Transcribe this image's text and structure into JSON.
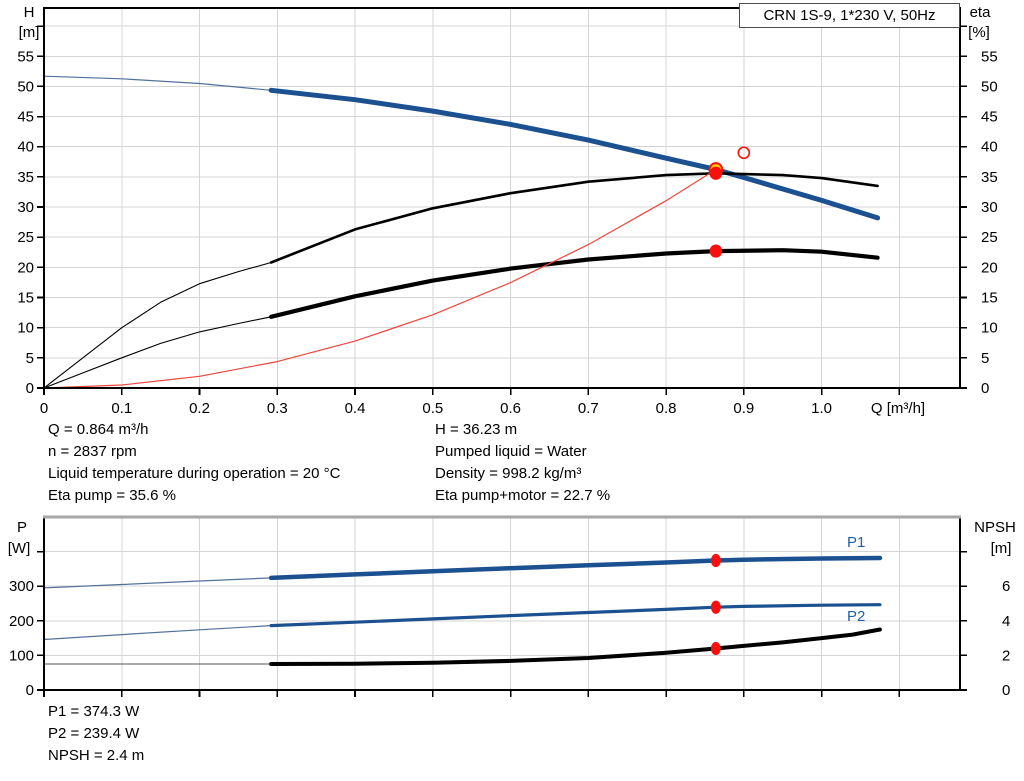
{
  "title_box": {
    "label": "CRN 1S-9, 1*230 V, 50Hz"
  },
  "colors": {
    "blue": "#1b5091",
    "blue_thin": "#51719b",
    "black": "#000000",
    "gray_thin": "#555555",
    "red_line": "#f0453c",
    "red_marker": "#fb0f0c",
    "yellow_marker": "#ffd400",
    "grid": "#d4d4d4",
    "axis": "#000000",
    "frame_gray": "#a6a6a6",
    "label_blue": "#1f5fa9"
  },
  "top_chart": {
    "left_axis": {
      "title": "H",
      "unit": "[m]"
    },
    "right_axis": {
      "title": "eta",
      "unit": "[%]"
    },
    "x_axis_label": "Q [m³/h]",
    "info_left": [
      "Q = 0.864 m³/h",
      "n = 2837 rpm",
      "Liquid temperature during operation = 20 °C",
      "Eta pump = 35.6 %"
    ],
    "info_right": [
      "H = 36.23 m",
      "Pumped liquid = Water",
      "Density = 998.2 kg/m³",
      "Eta pump+motor = 22.7 %"
    ]
  },
  "bottom_chart": {
    "left_axis": {
      "title": "P",
      "unit": "[W]"
    },
    "right_axis": {
      "title": "NPSH",
      "unit": "[m]"
    },
    "p1_label": "P1",
    "p2_label": "P2",
    "info": [
      "P1 = 374.3 W",
      "P2 = 239.4 W",
      "NPSH = 2.4 m"
    ]
  },
  "chart_data": [
    {
      "id": "top",
      "type": "line",
      "title": "CRN 1S-9, 1*230 V, 50Hz",
      "xlabel": "Q [m³/h]",
      "ylabel_left": "H [m]",
      "ylabel_right": "eta [%]",
      "xlim": [
        0,
        1.178
      ],
      "ylim_left": [
        0,
        63
      ],
      "ylim_right": [
        0,
        63
      ],
      "grid": true,
      "xticks": [
        {
          "v": 0,
          "l": "0"
        },
        {
          "v": 0.1,
          "l": "0.1"
        },
        {
          "v": 0.2,
          "l": "0.2"
        },
        {
          "v": 0.3,
          "l": "0.3"
        },
        {
          "v": 0.4,
          "l": "0.4"
        },
        {
          "v": 0.5,
          "l": "0.5"
        },
        {
          "v": 0.6,
          "l": "0.6"
        },
        {
          "v": 0.7,
          "l": "0.7"
        },
        {
          "v": 0.8,
          "l": "0.8"
        },
        {
          "v": 0.9,
          "l": "0.9"
        },
        {
          "v": 1.0,
          "l": "1.0"
        },
        {
          "v": 1.1,
          "l": ""
        }
      ],
      "yticks_left": [
        {
          "v": 0,
          "l": "0"
        },
        {
          "v": 5,
          "l": "5"
        },
        {
          "v": 10,
          "l": "10"
        },
        {
          "v": 15,
          "l": "15"
        },
        {
          "v": 20,
          "l": "20"
        },
        {
          "v": 25,
          "l": "25"
        },
        {
          "v": 30,
          "l": "30"
        },
        {
          "v": 35,
          "l": "35"
        },
        {
          "v": 40,
          "l": "40"
        },
        {
          "v": 45,
          "l": "45"
        },
        {
          "v": 50,
          "l": "50"
        },
        {
          "v": 55,
          "l": "55"
        },
        {
          "v": 60,
          "l": ""
        }
      ],
      "yticks_right": [
        {
          "v": 0,
          "l": "0"
        },
        {
          "v": 5,
          "l": "5"
        },
        {
          "v": 10,
          "l": "10"
        },
        {
          "v": 15,
          "l": "15"
        },
        {
          "v": 20,
          "l": "20"
        },
        {
          "v": 25,
          "l": "25"
        },
        {
          "v": 30,
          "l": "30"
        },
        {
          "v": 35,
          "l": "35"
        },
        {
          "v": 40,
          "l": "40"
        },
        {
          "v": 45,
          "l": "45"
        },
        {
          "v": 50,
          "l": "50"
        },
        {
          "v": 55,
          "l": "55"
        },
        {
          "v": 60,
          "l": ""
        }
      ],
      "series": [
        {
          "name": "pump-curve-extension",
          "axis": "left",
          "color": "blue_thin",
          "width": 1.2,
          "points": [
            [
              0,
              51.7
            ],
            [
              0.1,
              51.27
            ],
            [
              0.2,
              50.48
            ],
            [
              0.292,
              49.35
            ]
          ]
        },
        {
          "name": "pump-curve",
          "axis": "left",
          "color": "blue",
          "width": 5,
          "points": [
            [
              0.292,
              49.35
            ],
            [
              0.4,
              47.8
            ],
            [
              0.5,
              45.9
            ],
            [
              0.6,
              43.7
            ],
            [
              0.7,
              41.1
            ],
            [
              0.8,
              38.1
            ],
            [
              0.864,
              36.23
            ],
            [
              0.9,
              34.9
            ],
            [
              1.0,
              31.1
            ],
            [
              1.072,
              28.2
            ]
          ]
        },
        {
          "name": "eta-pump-extension",
          "axis": "right",
          "color": "black",
          "width": 1.1,
          "points": [
            [
              0,
              0
            ],
            [
              0.05,
              5
            ],
            [
              0.1,
              10
            ],
            [
              0.15,
              14.2
            ],
            [
              0.2,
              17.3
            ],
            [
              0.25,
              19.3
            ],
            [
              0.292,
              20.8
            ]
          ]
        },
        {
          "name": "eta-pump-curve",
          "axis": "right",
          "color": "black",
          "width": 2.6,
          "points": [
            [
              0.292,
              20.8
            ],
            [
              0.4,
              26.3
            ],
            [
              0.5,
              29.8
            ],
            [
              0.6,
              32.3
            ],
            [
              0.7,
              34.2
            ],
            [
              0.8,
              35.3
            ],
            [
              0.864,
              35.6
            ],
            [
              0.95,
              35.3
            ],
            [
              1.0,
              34.8
            ],
            [
              1.072,
              33.5
            ]
          ]
        },
        {
          "name": "eta-pump-motor-extension",
          "axis": "right",
          "color": "black",
          "width": 1.1,
          "points": [
            [
              0,
              0
            ],
            [
              0.05,
              2.5
            ],
            [
              0.1,
              5
            ],
            [
              0.15,
              7.4
            ],
            [
              0.2,
              9.3
            ],
            [
              0.25,
              10.7
            ],
            [
              0.292,
              11.8
            ]
          ]
        },
        {
          "name": "eta-pump-motor-curve",
          "axis": "right",
          "color": "black",
          "width": 4.2,
          "points": [
            [
              0.292,
              11.8
            ],
            [
              0.4,
              15.2
            ],
            [
              0.5,
              17.8
            ],
            [
              0.6,
              19.8
            ],
            [
              0.7,
              21.3
            ],
            [
              0.8,
              22.3
            ],
            [
              0.864,
              22.7
            ],
            [
              0.95,
              22.85
            ],
            [
              1.0,
              22.6
            ],
            [
              1.072,
              21.6
            ]
          ]
        },
        {
          "name": "system-curve",
          "axis": "left",
          "color": "red_line",
          "width": 1.2,
          "points": [
            [
              0,
              0
            ],
            [
              0.1,
              0.49
            ],
            [
              0.2,
              1.94
            ],
            [
              0.3,
              4.37
            ],
            [
              0.4,
              7.77
            ],
            [
              0.5,
              12.13
            ],
            [
              0.6,
              17.47
            ],
            [
              0.7,
              23.78
            ],
            [
              0.8,
              31.06
            ],
            [
              0.864,
              36.23
            ]
          ]
        }
      ],
      "markers": [
        {
          "name": "duty-point-head",
          "q": 0.864,
          "v": 36.23,
          "axis": "left",
          "style": "yellow"
        },
        {
          "name": "duty-point-eta",
          "q": 0.864,
          "v": 35.6,
          "axis": "right",
          "style": "red"
        },
        {
          "name": "duty-point-eta-total",
          "q": 0.864,
          "v": 22.7,
          "axis": "right",
          "style": "red"
        },
        {
          "name": "rated-duty-point",
          "q": 0.9,
          "v": 39.0,
          "axis": "left",
          "style": "open"
        }
      ]
    },
    {
      "id": "bottom",
      "type": "line",
      "title": "",
      "xlabel": "",
      "ylabel_left": "P [W]",
      "ylabel_right": "NPSH [m]",
      "xlim": [
        0,
        1.178
      ],
      "ylim_left": [
        0,
        500
      ],
      "ylim_right": [
        0,
        10
      ],
      "grid": true,
      "xticks": [
        {
          "v": 0,
          "l": ""
        },
        {
          "v": 0.1,
          "l": ""
        },
        {
          "v": 0.2,
          "l": ""
        },
        {
          "v": 0.3,
          "l": ""
        },
        {
          "v": 0.4,
          "l": ""
        },
        {
          "v": 0.5,
          "l": ""
        },
        {
          "v": 0.6,
          "l": ""
        },
        {
          "v": 0.7,
          "l": ""
        },
        {
          "v": 0.8,
          "l": ""
        },
        {
          "v": 0.9,
          "l": ""
        },
        {
          "v": 1.0,
          "l": ""
        },
        {
          "v": 1.1,
          "l": ""
        }
      ],
      "yticks_left": [
        {
          "v": 0,
          "l": "0"
        },
        {
          "v": 100,
          "l": "100"
        },
        {
          "v": 200,
          "l": "200"
        },
        {
          "v": 300,
          "l": "300"
        },
        {
          "v": 400,
          "l": ""
        }
      ],
      "yticks_right": [
        {
          "v": 0,
          "l": "0"
        },
        {
          "v": 2,
          "l": "2"
        },
        {
          "v": 4,
          "l": "4"
        },
        {
          "v": 6,
          "l": "6"
        },
        {
          "v": 8,
          "l": ""
        }
      ],
      "series": [
        {
          "name": "p1-extension",
          "axis": "left",
          "color": "blue_thin",
          "width": 1.2,
          "points": [
            [
              0,
              295
            ],
            [
              0.1,
              305
            ],
            [
              0.2,
              315
            ],
            [
              0.292,
              324
            ]
          ]
        },
        {
          "name": "p1-curve",
          "axis": "left",
          "color": "blue",
          "width": 4.5,
          "points": [
            [
              0.292,
              324
            ],
            [
              0.4,
              334
            ],
            [
              0.5,
              343
            ],
            [
              0.6,
              352
            ],
            [
              0.7,
              360.5
            ],
            [
              0.8,
              368.5
            ],
            [
              0.864,
              374.3
            ],
            [
              0.9,
              376.5
            ],
            [
              1.0,
              380
            ],
            [
              1.075,
              381.5
            ]
          ]
        },
        {
          "name": "p2-extension",
          "axis": "left",
          "color": "blue_thin",
          "width": 1.2,
          "points": [
            [
              0,
              146
            ],
            [
              0.1,
              160
            ],
            [
              0.2,
              174
            ],
            [
              0.292,
              186
            ]
          ]
        },
        {
          "name": "p2-curve",
          "axis": "left",
          "color": "blue",
          "width": 3.2,
          "points": [
            [
              0.292,
              186
            ],
            [
              0.4,
              196
            ],
            [
              0.5,
              205.5
            ],
            [
              0.6,
              215
            ],
            [
              0.7,
              224
            ],
            [
              0.8,
              233
            ],
            [
              0.864,
              239.4
            ],
            [
              0.9,
              241.5
            ],
            [
              1.0,
              245
            ],
            [
              1.075,
              246.5
            ]
          ]
        },
        {
          "name": "npsh-extension",
          "axis": "right",
          "color": "gray_thin",
          "width": 1.1,
          "points": [
            [
              0,
              1.5
            ],
            [
              0.292,
              1.5
            ]
          ]
        },
        {
          "name": "npsh-curve",
          "axis": "right",
          "color": "black",
          "width": 4,
          "points": [
            [
              0.292,
              1.5
            ],
            [
              0.4,
              1.52
            ],
            [
              0.5,
              1.58
            ],
            [
              0.6,
              1.68
            ],
            [
              0.7,
              1.85
            ],
            [
              0.8,
              2.15
            ],
            [
              0.864,
              2.4
            ],
            [
              0.9,
              2.55
            ],
            [
              0.95,
              2.75
            ],
            [
              1.0,
              3.0
            ],
            [
              1.04,
              3.2
            ],
            [
              1.075,
              3.5
            ]
          ]
        }
      ],
      "markers": [
        {
          "name": "duty-point-p1",
          "q": 0.864,
          "v": 374.3,
          "axis": "left",
          "style": "red"
        },
        {
          "name": "duty-point-p2",
          "q": 0.864,
          "v": 239.4,
          "axis": "left",
          "style": "red"
        },
        {
          "name": "duty-point-npsh",
          "q": 0.864,
          "v": 2.4,
          "axis": "right",
          "style": "red"
        }
      ]
    }
  ]
}
